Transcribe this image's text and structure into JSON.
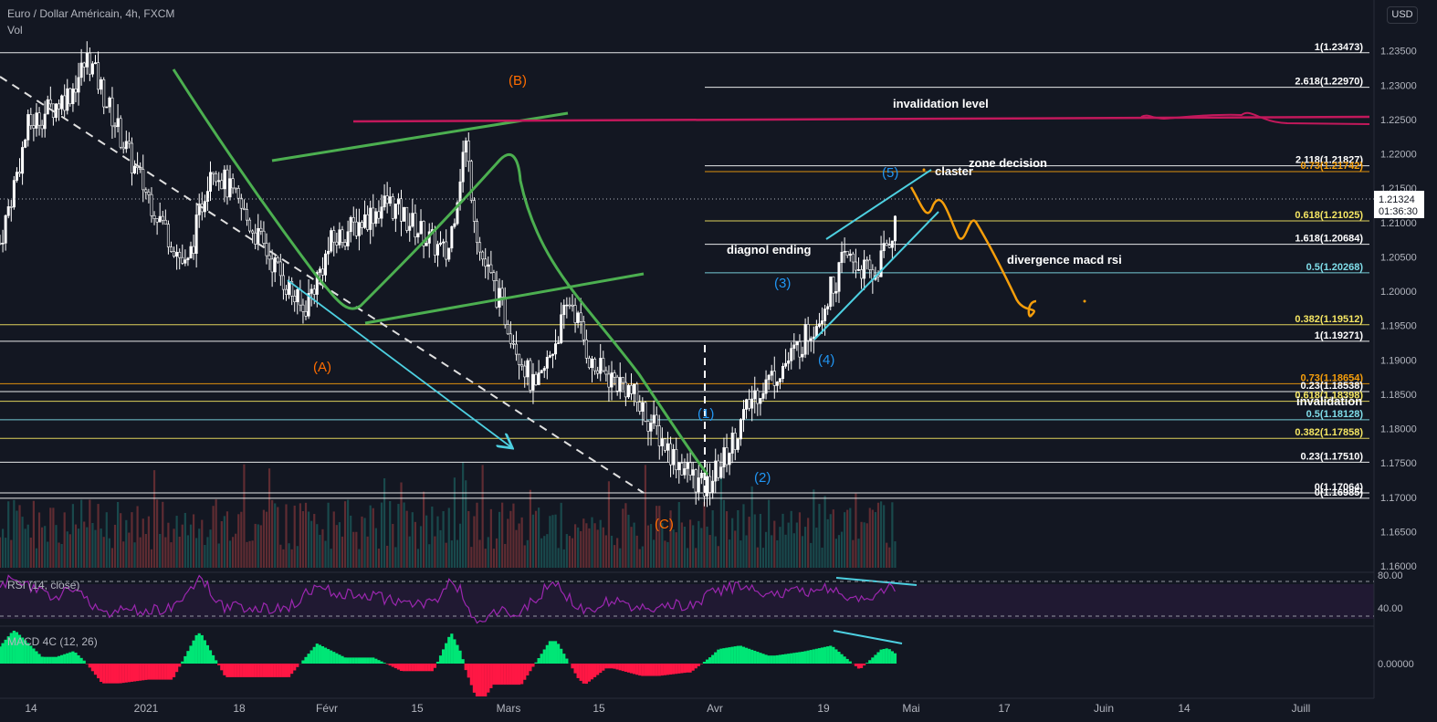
{
  "header": {
    "symbol_title": "Euro / Dollar Américain, 4h, FXCM",
    "volume_label": "Vol",
    "currency_button": "USD"
  },
  "colors": {
    "background": "#131722",
    "candle": "#ffffff",
    "green_annotation": "#4caf50",
    "cyan_annotation": "#4dd0e1",
    "magenta_annotation": "#c2185b",
    "orange_annotation": "#f59e0b",
    "wave_orange": "#ff6d00",
    "wave_blue": "#2196f3",
    "rsi": "#9c27b0",
    "macd_up": "#00e676",
    "macd_down": "#ff1744"
  },
  "chart_data": [
    {
      "type": "candlestick",
      "price_axis": {
        "ticks": [
          1.235,
          1.23,
          1.225,
          1.22,
          1.215,
          1.21,
          1.205,
          1.2,
          1.195,
          1.19,
          1.185,
          1.18,
          1.175,
          1.17,
          1.165,
          1.16
        ],
        "tick_labels": [
          "1.23500",
          "1.23000",
          "1.22500",
          "1.22000",
          "1.21500",
          "1.21000",
          "1.20500",
          "1.20000",
          "1.19500",
          "1.19000",
          "1.18500",
          "1.18000",
          "1.17500",
          "1.17000",
          "1.16500",
          "1.16000"
        ],
        "ylim": [
          1.16,
          1.237
        ]
      },
      "time_axis": {
        "tick_labels": [
          "14",
          "2021",
          "18",
          "Févr",
          "15",
          "Mars",
          "15",
          "Avr",
          "19",
          "Mai",
          "17",
          "Juin",
          "14",
          "Juill"
        ]
      },
      "last_price": {
        "value": 1.21324,
        "label": "1.21324",
        "countdown": "01:36:30"
      },
      "price_path": [
        [
          0,
          1.207
        ],
        [
          0.04,
          1.224
        ],
        [
          0.1,
          1.229
        ],
        [
          0.125,
          1.234
        ],
        [
          0.19,
          1.218
        ],
        [
          0.265,
          1.203
        ],
        [
          0.3,
          1.219
        ],
        [
          0.43,
          1.197
        ],
        [
          0.47,
          1.207
        ],
        [
          0.55,
          1.213
        ],
        [
          0.635,
          1.205
        ],
        [
          0.66,
          1.222
        ],
        [
          0.68,
          1.206
        ],
        [
          0.76,
          1.185
        ],
        [
          0.81,
          1.199
        ],
        [
          0.84,
          1.189
        ],
        [
          0.89,
          1.186
        ],
        [
          0.955,
          1.176
        ],
        [
          1.0,
          1.171
        ],
        [
          1.03,
          1.176
        ],
        [
          1.07,
          1.185
        ],
        [
          1.12,
          1.19
        ],
        [
          1.16,
          1.196
        ],
        [
          1.2,
          1.205
        ],
        [
          1.24,
          1.202
        ],
        [
          1.275,
          1.211
        ],
        [
          1.3,
          1.213
        ]
      ],
      "volume": {
        "max_fraction": 1.0
      },
      "fib_levels": [
        {
          "label": "1(1.23473)",
          "value": 1.23473,
          "color": "#ffffff"
        },
        {
          "label": "2.618(1.22970)",
          "value": 1.2297,
          "color": "#ffffff"
        },
        {
          "label": "2.118(1.21827)",
          "value": 1.21827,
          "color": "#ffffff"
        },
        {
          "label": "0.73(1.21742)",
          "value": 1.21742,
          "color": "#f59e0b"
        },
        {
          "label": "0.618(1.21025)",
          "value": 1.21025,
          "color": "#f5e663"
        },
        {
          "label": "1.618(1.20684)",
          "value": 1.20684,
          "color": "#ffffff"
        },
        {
          "label": "0.5(1.20268)",
          "value": 1.20268,
          "color": "#80deea"
        },
        {
          "label": "0.382(1.19512)",
          "value": 1.19512,
          "color": "#f5e663"
        },
        {
          "label": "1(1.19271)",
          "value": 1.19271,
          "color": "#ffffff"
        },
        {
          "label": "0.73(1.18654)",
          "value": 1.18654,
          "color": "#f59e0b"
        },
        {
          "label": "0.23(1.18538)",
          "value": 1.18538,
          "color": "#ffffff"
        },
        {
          "label": "0.618(1.18398)",
          "value": 1.18398,
          "color": "#f5e663"
        },
        {
          "label": "0.5(1.18128)",
          "value": 1.18128,
          "color": "#80deea"
        },
        {
          "label": "0.382(1.17858)",
          "value": 1.17858,
          "color": "#f5e663"
        },
        {
          "label": "0.23(1.17510)",
          "value": 1.1751,
          "color": "#ffffff"
        },
        {
          "label": "0(1.17064)",
          "value": 1.17064,
          "color": "#ffffff"
        },
        {
          "label": "0(1.16985)",
          "value": 1.16985,
          "color": "#ffffff"
        }
      ],
      "annotations": {
        "wave_labels": [
          "(A)",
          "(B)",
          "(C)",
          "(1)",
          "(2)",
          "(3)",
          "(4)",
          "(5)"
        ],
        "texts": [
          "invalidation level",
          "zone decision",
          "claster",
          "diagnol ending",
          "divergence macd rsi",
          "invalidation"
        ]
      }
    },
    {
      "type": "line",
      "title": "RSI (14, close)",
      "ticks": [
        80,
        40
      ],
      "tick_labels": [
        "80.00",
        "40.00"
      ],
      "ylim": [
        20,
        90
      ],
      "bands": [
        70,
        30
      ]
    },
    {
      "type": "histogram",
      "title": "MACD 4C (12, 26)",
      "ticks": [
        0
      ],
      "tick_labels": [
        "0.00000"
      ]
    }
  ]
}
